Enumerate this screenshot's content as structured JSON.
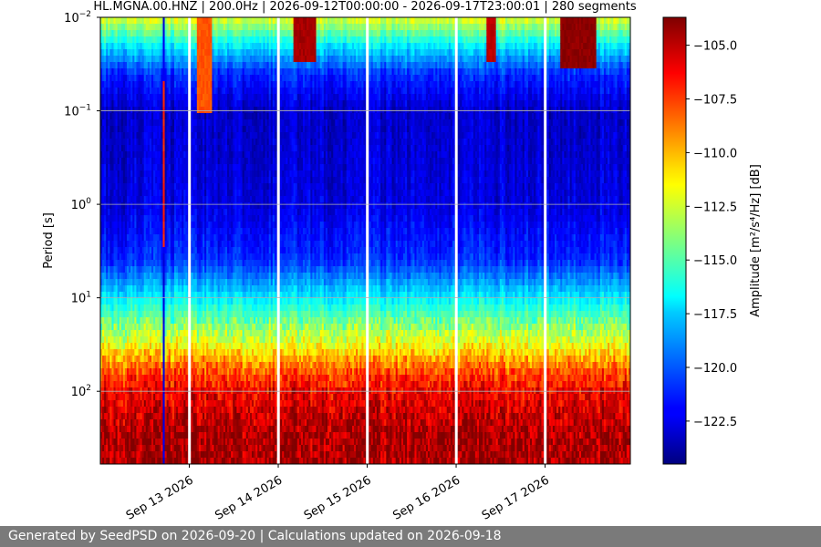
{
  "footer": {
    "text": "Generated by SeedPSD on 2026-09-20 | Calculations updated on 2026-09-18"
  },
  "chart_data": {
    "type": "heatmap",
    "title": "HL.MGNA.00.HNZ | 200.0Hz | 2026-09-12T00:00:00 - 2026-09-17T23:00:01 | 280 segments",
    "xlabel": "",
    "ylabel": "Period [s]",
    "colorbar_label": "Amplitude [m²/s⁴/Hz] [dB]",
    "colormap": "jet",
    "y_scale": "log",
    "y_inverted": true,
    "grid": true,
    "x_range": [
      "2026-09-12T00:00:00",
      "2026-09-17T23:00:01"
    ],
    "ylim": [
      0.01,
      600
    ],
    "y_ticks": [
      {
        "value": 0.01,
        "base": "10",
        "exp": "−2"
      },
      {
        "value": 0.1,
        "base": "10",
        "exp": "−1"
      },
      {
        "value": 1,
        "base": "10",
        "exp": "0"
      },
      {
        "value": 10,
        "base": "10",
        "exp": "1"
      },
      {
        "value": 100,
        "base": "10",
        "exp": "2"
      }
    ],
    "x_ticks": [
      {
        "value": "2026-09-13",
        "label": "Sep 13 2026"
      },
      {
        "value": "2026-09-14",
        "label": "Sep 14 2026"
      },
      {
        "value": "2026-09-15",
        "label": "Sep 15 2026"
      },
      {
        "value": "2026-09-16",
        "label": "Sep 16 2026"
      },
      {
        "value": "2026-09-17",
        "label": "Sep 17 2026"
      }
    ],
    "colorbar_range": [
      -124.5,
      -103.7
    ],
    "colorbar_ticks": [
      {
        "value": -105.0,
        "label": "−105.0"
      },
      {
        "value": -107.5,
        "label": "−107.5"
      },
      {
        "value": -110.0,
        "label": "−110.0"
      },
      {
        "value": -112.5,
        "label": "−112.5"
      },
      {
        "value": -115.0,
        "label": "−115.0"
      },
      {
        "value": -117.5,
        "label": "−117.5"
      },
      {
        "value": -120.0,
        "label": "−120.0"
      },
      {
        "value": -122.5,
        "label": "−122.5"
      }
    ],
    "data_gaps": [
      "2026-09-12T23:55:00",
      "2026-09-13T23:55:00",
      "2026-09-14T23:55:00",
      "2026-09-15T23:55:00",
      "2026-09-16T23:55:00"
    ],
    "amplitude_profile": [
      {
        "period": 0.01,
        "db": -112
      },
      {
        "period": 0.02,
        "db": -117
      },
      {
        "period": 0.04,
        "db": -121
      },
      {
        "period": 0.1,
        "db": -123
      },
      {
        "period": 1,
        "db": -122.5
      },
      {
        "period": 4,
        "db": -121
      },
      {
        "period": 10,
        "db": -117
      },
      {
        "period": 30,
        "db": -112
      },
      {
        "period": 60,
        "db": -108
      },
      {
        "period": 100,
        "db": -106
      },
      {
        "period": 300,
        "db": -104.5
      }
    ],
    "events": [
      {
        "start": "2026-09-12T16:50:00",
        "end": "2026-09-12T17:10:00",
        "period_min": 0.01,
        "period_max": 600,
        "db": -122.5
      },
      {
        "start": "2026-09-12T16:50:00",
        "end": "2026-09-12T17:10:00",
        "period_min": 0.05,
        "period_max": 3,
        "db": -107
      },
      {
        "start": "2026-09-13T02:00:00",
        "end": "2026-09-13T06:00:00",
        "period_min": 0.01,
        "period_max": 0.1,
        "db": -108
      },
      {
        "start": "2026-09-14T04:00:00",
        "end": "2026-09-14T10:00:00",
        "period_min": 0.01,
        "period_max": 0.03,
        "db": -104.5
      },
      {
        "start": "2026-09-16T08:00:00",
        "end": "2026-09-16T10:30:00",
        "period_min": 0.01,
        "period_max": 0.03,
        "db": -105
      },
      {
        "start": "2026-09-17T04:00:00",
        "end": "2026-09-17T14:00:00",
        "period_min": 0.01,
        "period_max": 0.035,
        "db": -104
      }
    ]
  }
}
